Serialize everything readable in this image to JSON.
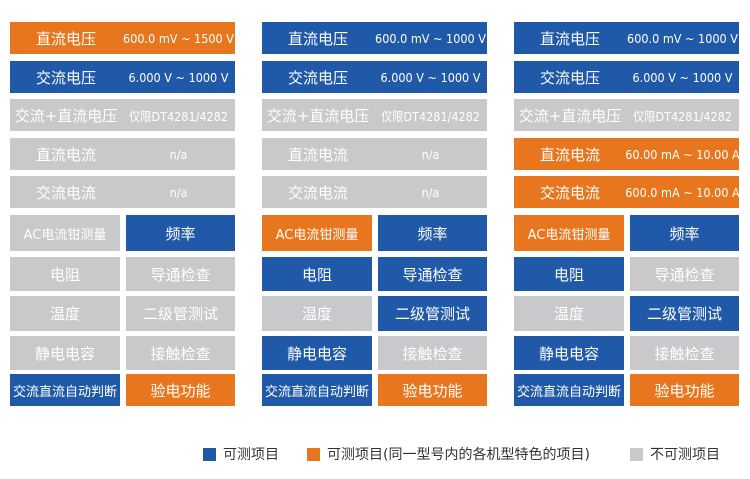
{
  "panels": [
    {
      "rows": [
        {
          "label": "直流电压",
          "value": "600.0 mV ~ 1500 V",
          "color": "#e8761e"
        },
        {
          "label": "交流电压",
          "value": "6.000 V ~ 1000 V",
          "color": "#2059a8"
        },
        {
          "label": "交流+直流电压",
          "value": "仅限DT4281/4282",
          "color": "#c9c9cb"
        },
        {
          "label": "直流电流",
          "value": "n/a",
          "color": "#c9c9cb"
        },
        {
          "label": "交流电流",
          "value": "n/a",
          "color": "#c9c9cb"
        }
      ],
      "cells": [
        [
          {
            "text": "AC电流钳测量",
            "color": "#c9c9cb"
          },
          {
            "text": "频率",
            "color": "#2059a8"
          }
        ],
        [
          {
            "text": "电阻",
            "color": "#c9c9cb"
          },
          {
            "text": "导通检查",
            "color": "#c9c9cb"
          }
        ],
        [
          {
            "text": "温度",
            "color": "#c9c9cb"
          },
          {
            "text": "二级管测试",
            "color": "#c9c9cb"
          }
        ],
        [
          {
            "text": "静电电容",
            "color": "#c9c9cb"
          },
          {
            "text": "接触检查",
            "color": "#c9c9cb"
          }
        ],
        [
          {
            "text": "交流直流自动判断",
            "color": "#2059a8"
          },
          {
            "text": "验电功能",
            "color": "#e8761e"
          }
        ]
      ]
    },
    {
      "rows": [
        {
          "label": "直流电压",
          "value": "600.0 mV ~ 1000 V",
          "color": "#2059a8"
        },
        {
          "label": "交流电压",
          "value": "6.000 V ~ 1000 V",
          "color": "#2059a8"
        },
        {
          "label": "交流+直流电压",
          "value": "仅限DT4281/4282",
          "color": "#c9c9cb"
        },
        {
          "label": "直流电流",
          "value": "n/a",
          "color": "#c9c9cb"
        },
        {
          "label": "交流电流",
          "value": "n/a",
          "color": "#c9c9cb"
        }
      ],
      "cells": [
        [
          {
            "text": "AC电流钳测量",
            "color": "#e8761e"
          },
          {
            "text": "频率",
            "color": "#2059a8"
          }
        ],
        [
          {
            "text": "电阻",
            "color": "#2059a8"
          },
          {
            "text": "导通检查",
            "color": "#2059a8"
          }
        ],
        [
          {
            "text": "温度",
            "color": "#c9c9cb"
          },
          {
            "text": "二级管测试",
            "color": "#2059a8"
          }
        ],
        [
          {
            "text": "静电电容",
            "color": "#2059a8"
          },
          {
            "text": "接触检查",
            "color": "#c9c9cb"
          }
        ],
        [
          {
            "text": "交流直流自动判断",
            "color": "#2059a8"
          },
          {
            "text": "验电功能",
            "color": "#e8761e"
          }
        ]
      ]
    },
    {
      "rows": [
        {
          "label": "直流电压",
          "value": "600.0 mV ~ 1000 V",
          "color": "#2059a8"
        },
        {
          "label": "交流电压",
          "value": "6.000 V ~ 1000 V",
          "color": "#2059a8"
        },
        {
          "label": "交流+直流电压",
          "value": "仅限DT4281/4282",
          "color": "#c9c9cb"
        },
        {
          "label": "直流电流",
          "value": "60.00 mA ~ 10.00 A",
          "color": "#e8761e"
        },
        {
          "label": "交流电流",
          "value": "600.0 mA ~ 10.00 A",
          "color": "#e8761e"
        }
      ],
      "cells": [
        [
          {
            "text": "AC电流钳测量",
            "color": "#e8761e"
          },
          {
            "text": "频率",
            "color": "#2059a8"
          }
        ],
        [
          {
            "text": "电阻",
            "color": "#2059a8"
          },
          {
            "text": "导通检查",
            "color": "#c9c9cb"
          }
        ],
        [
          {
            "text": "温度",
            "color": "#c9c9cb"
          },
          {
            "text": "二级管测试",
            "color": "#2059a8"
          }
        ],
        [
          {
            "text": "静电电容",
            "color": "#2059a8"
          },
          {
            "text": "接触检查",
            "color": "#c9c9cb"
          }
        ],
        [
          {
            "text": "交流直流自动判断",
            "color": "#2059a8"
          },
          {
            "text": "验电功能",
            "color": "#e8761e"
          }
        ]
      ]
    }
  ],
  "legend": [
    {
      "label": "可测项目",
      "color": "#2059a8"
    },
    {
      "label": "可测项目(同一型号内的各机型特色的项目)",
      "color": "#e8761e"
    },
    {
      "label": "不可测项目",
      "color": "#c9c9cb"
    }
  ]
}
